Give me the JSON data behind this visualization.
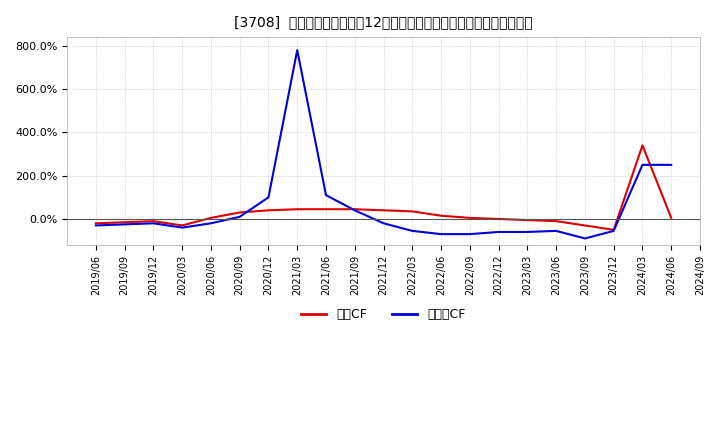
{
  "title": "[3708]  キャッシュフローの12か月移動合計の対前年同期増減率の推移",
  "legend_labels": [
    "営業CF",
    "フリーCF"
  ],
  "legend_colors": [
    "#dd0000",
    "#0000dd"
  ],
  "background_color": "#ffffff",
  "grid_color": "#bbbbbb",
  "ylim": [
    -120,
    840
  ],
  "yticks": [
    0,
    200,
    400,
    600,
    800
  ],
  "ytick_labels": [
    "0.0%",
    "200.0%",
    "400.0%",
    "600.0%",
    "800.0%"
  ],
  "dates": [
    "2019/06",
    "2019/09",
    "2019/12",
    "2020/03",
    "2020/06",
    "2020/09",
    "2020/12",
    "2021/03",
    "2021/06",
    "2021/09",
    "2021/12",
    "2022/03",
    "2022/06",
    "2022/09",
    "2022/12",
    "2023/03",
    "2023/06",
    "2023/09",
    "2023/12",
    "2024/03",
    "2024/06",
    "2024/09"
  ],
  "operating_cf": [
    -20,
    -15,
    -10,
    -30,
    5,
    30,
    40,
    45,
    45,
    45,
    40,
    35,
    15,
    5,
    0,
    -5,
    -10,
    -30,
    -50,
    340,
    5,
    null
  ],
  "free_cf": [
    -30,
    -25,
    -20,
    -40,
    -20,
    10,
    100,
    780,
    110,
    40,
    -20,
    -55,
    -70,
    -70,
    -60,
    -60,
    -55,
    -90,
    -55,
    250,
    250,
    null
  ]
}
